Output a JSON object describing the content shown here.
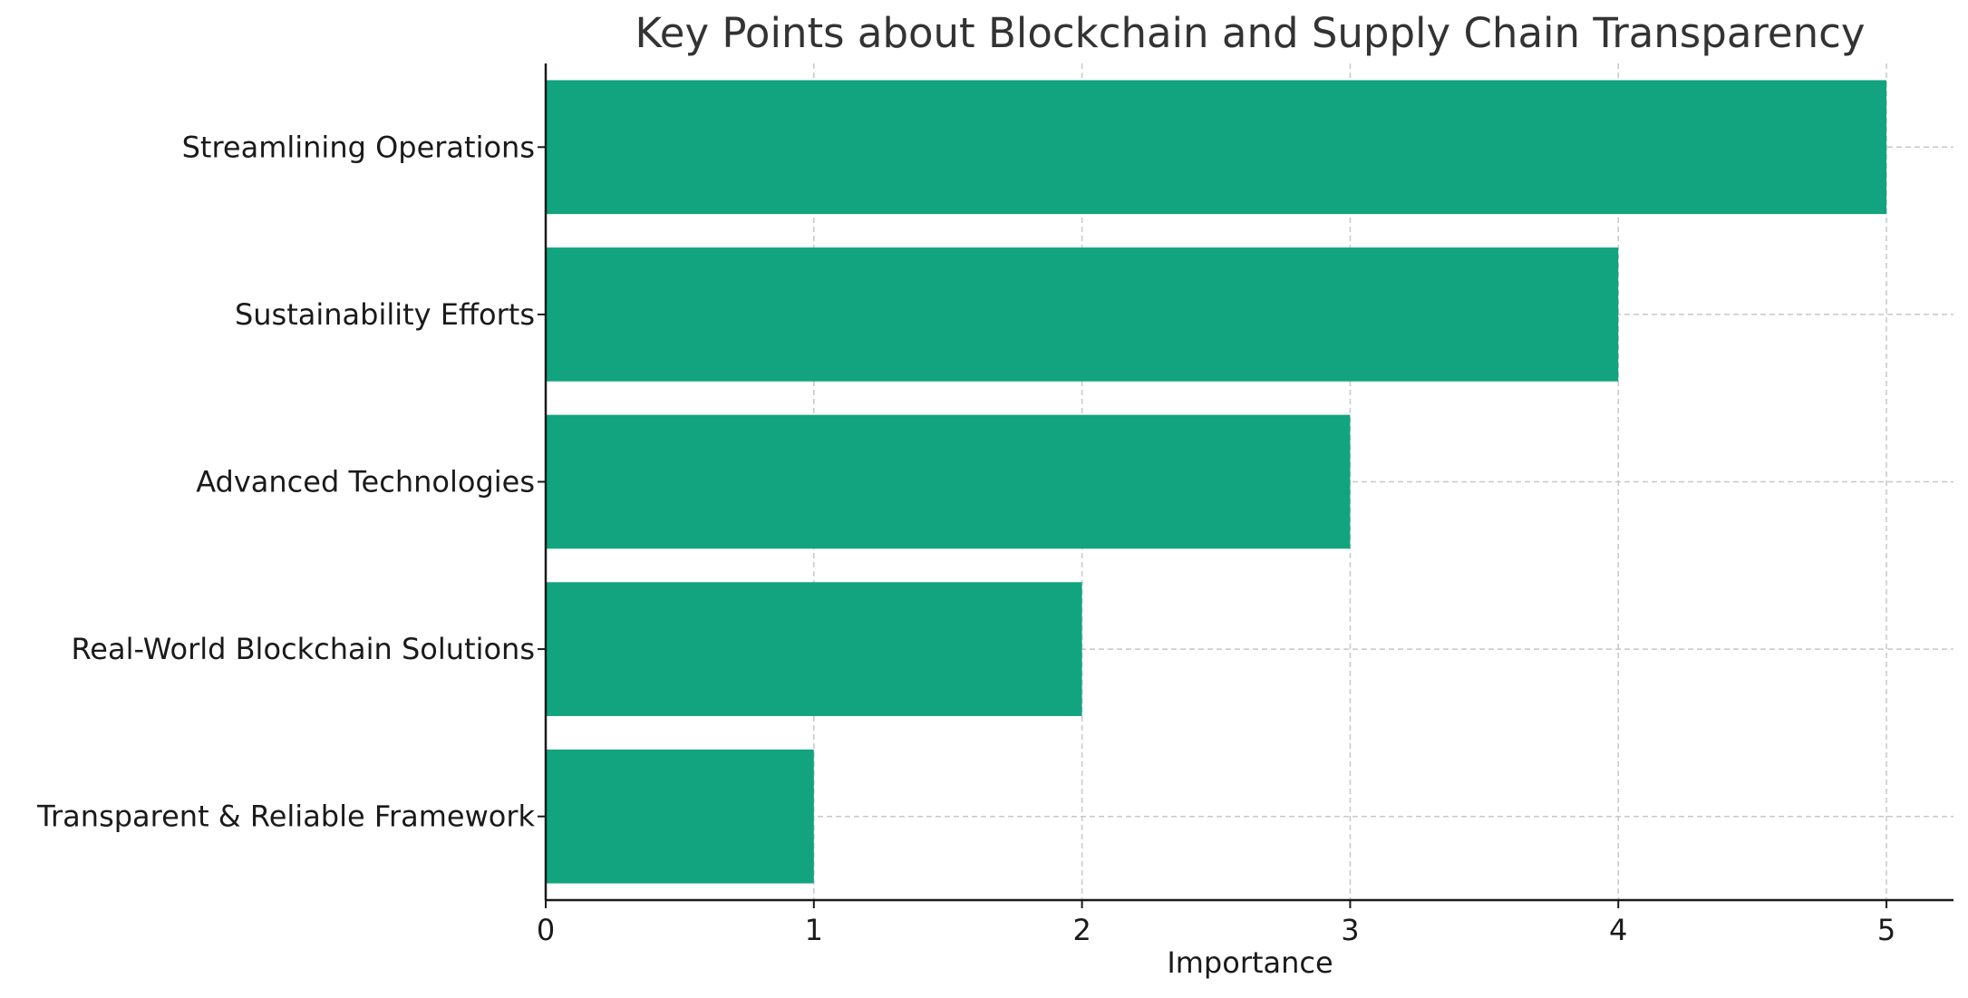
{
  "chart_data": {
    "type": "bar",
    "orientation": "horizontal",
    "title": "Key Points about Blockchain and Supply Chain Transparency",
    "xlabel": "Importance",
    "ylabel": "",
    "categories": [
      "Streamlining Operations",
      "Sustainability Efforts",
      "Advanced Technologies",
      "Real-World Blockchain Solutions",
      "Transparent & Reliable Framework"
    ],
    "values": [
      5,
      4,
      3,
      2,
      1
    ],
    "xlim": [
      0,
      5.25
    ],
    "x_ticks": [
      "0",
      "1",
      "2",
      "3",
      "4",
      "5"
    ],
    "grid": true,
    "legend": "none",
    "colors": {
      "bar": "#12a37f",
      "grid": "#c8c8c8",
      "axis": "#1a1a1a",
      "title": "#333333"
    }
  }
}
